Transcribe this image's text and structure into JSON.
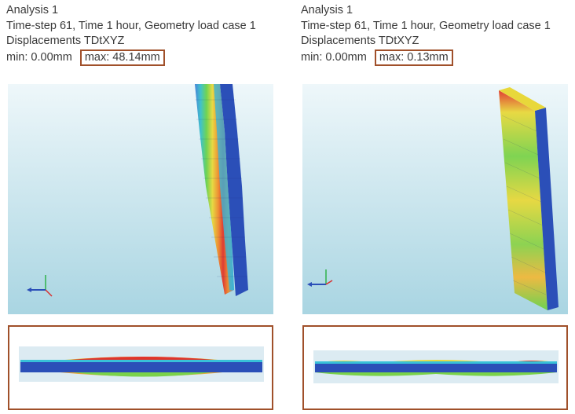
{
  "panels": [
    {
      "analysis": "Analysis 1",
      "timestep": "Time-step 61, Time 1 hour, Geometry load case 1",
      "result": "Displacements TDtXYZ",
      "min": "min: 0.00mm",
      "max": "max: 48.14mm"
    },
    {
      "analysis": "Analysis 1",
      "timestep": "Time-step 61, Time 1 hour, Geometry load case 1",
      "result": "Displacements TDtXYZ",
      "min": "min: 0.00mm",
      "max": "max: 0.13mm"
    }
  ],
  "colors": {
    "highlight_box": "#a0502a",
    "background_top": "#e8f4f8",
    "background_bottom": "#a8d4e0",
    "mesh_blue": "#2b4fb8"
  },
  "icons": [
    "axis-triad-icon"
  ]
}
